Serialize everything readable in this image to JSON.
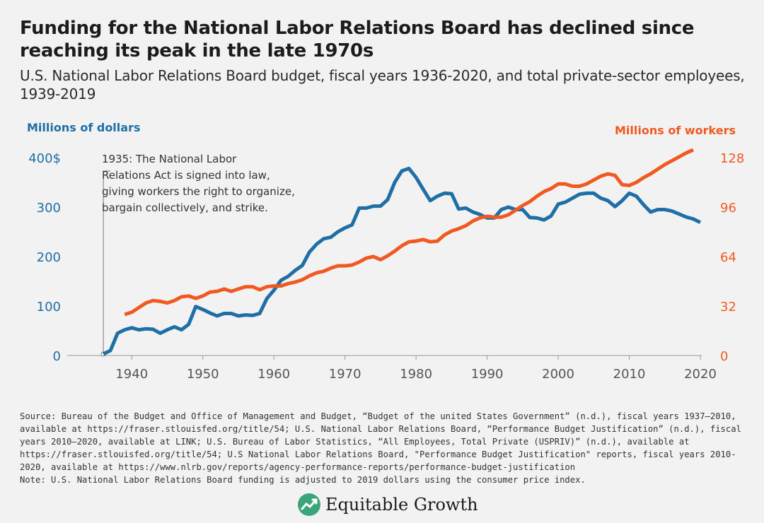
{
  "title": "Funding for the National Labor Relations Board has declined since reaching its peak in the late 1970s",
  "subtitle": "U.S. National Labor Relations Board budget, fiscal years 1936-2020, and total private-sector employees, 1939-2019",
  "colors": {
    "budget": "#1f6fa6",
    "workers": "#f05a22",
    "annotation": "#777777"
  },
  "source": "Source: Bureau of the Budget and Office of Management and Budget, “Budget of the united States Government” (n.d.), fiscal years 1937—2010, available at https://fraser.stlouisfed.org/title/54; U.S. National Labor Relations Board, “Performance Budget Justification” (n.d.), fiscal years 2010—2020, available at LINK; U.S. Bureau of Labor Statistics, “All Employees, Total Private (USPRIV)” (n.d.), available at https://fraser.stlouisfed.org/title/54; U.S National Labor Relations Board, \"Performance Budget Justification\" reports, fiscal years 2010-2020, available at https://www.nlrb.gov/reports/agency-performance-reports/performance-budget-justification",
  "note": "Note: U.S. National Labor Relations Board funding is adjusted to 2019 dollars using the consumer price index.",
  "logo": {
    "text": "Equitable Growth",
    "icon": "growth-chart-leaf-icon"
  },
  "chart_data": {
    "type": "line",
    "x_range": [
      1934,
      2020
    ],
    "x_ticks": [
      "1940",
      "1950",
      "1960",
      "1970",
      "1980",
      "1990",
      "2000",
      "2010",
      "2020"
    ],
    "y_left": {
      "label": "Millions of dollars",
      "range": [
        0,
        400
      ],
      "ticks": [
        "0",
        "100",
        "200",
        "300",
        "400$"
      ]
    },
    "y_right": {
      "label": "Millions of workers",
      "range": [
        0,
        128
      ],
      "ticks": [
        "0",
        "32",
        "64",
        "96",
        "128"
      ]
    },
    "grid": false,
    "annotation": {
      "x": 1936,
      "text": [
        "1935: The National Labor",
        "Relations Act is signed into law,",
        "giving workers the right to organize,",
        "bargain collectively, and strike."
      ]
    },
    "series": [
      {
        "axis": "left",
        "x": [
          1936,
          1937,
          1938,
          1939,
          1940,
          1941,
          1942,
          1943,
          1944,
          1945,
          1946,
          1947,
          1948,
          1949,
          1950,
          1951,
          1952,
          1953,
          1954,
          1955,
          1956,
          1957,
          1958,
          1959,
          1960,
          1961,
          1962,
          1963,
          1964,
          1965,
          1966,
          1967,
          1968,
          1969,
          1970,
          1971,
          1972,
          1973,
          1974,
          1975,
          1976,
          1977,
          1978,
          1979,
          1980,
          1981,
          1982,
          1983,
          1984,
          1985,
          1986,
          1987,
          1988,
          1989,
          1990,
          1991,
          1992,
          1993,
          1994,
          1995,
          1996,
          1997,
          1998,
          1999,
          2000,
          2001,
          2002,
          2003,
          2004,
          2005,
          2006,
          2007,
          2008,
          2009,
          2010,
          2011,
          2012,
          2013,
          2014,
          2015,
          2016,
          2017,
          2018,
          2019,
          2020
        ],
        "values": [
          3,
          10,
          45,
          52,
          56,
          52,
          54,
          53,
          45,
          52,
          58,
          52,
          63,
          99,
          93,
          86,
          80,
          85,
          85,
          80,
          82,
          81,
          85,
          115,
          132,
          152,
          160,
          172,
          182,
          209,
          225,
          236,
          239,
          250,
          258,
          264,
          298,
          298,
          302,
          302,
          315,
          350,
          373,
          378,
          360,
          336,
          313,
          322,
          328,
          327,
          296,
          298,
          290,
          285,
          278,
          278,
          295,
          300,
          295,
          295,
          279,
          278,
          274,
          282,
          306,
          310,
          318,
          326,
          328,
          328,
          318,
          313,
          301,
          313,
          328,
          322,
          305,
          290,
          295,
          295,
          292,
          286,
          280,
          276,
          269
        ]
      },
      {
        "axis": "right",
        "x": [
          1939,
          1940,
          1941,
          1942,
          1943,
          1944,
          1945,
          1946,
          1947,
          1948,
          1949,
          1950,
          1951,
          1952,
          1953,
          1954,
          1955,
          1956,
          1957,
          1958,
          1959,
          1960,
          1961,
          1962,
          1963,
          1964,
          1965,
          1966,
          1967,
          1968,
          1969,
          1970,
          1971,
          1972,
          1973,
          1974,
          1975,
          1976,
          1977,
          1978,
          1979,
          1980,
          1981,
          1982,
          1983,
          1984,
          1985,
          1986,
          1987,
          1988,
          1989,
          1990,
          1991,
          1992,
          1993,
          1994,
          1995,
          1996,
          1997,
          1998,
          1999,
          2000,
          2001,
          2002,
          2003,
          2004,
          2005,
          2006,
          2007,
          2008,
          2009,
          2010,
          2011,
          2012,
          2013,
          2014,
          2015,
          2016,
          2017,
          2018,
          2019
        ],
        "values": [
          26.5,
          28,
          31,
          34,
          35.5,
          35,
          34,
          35.5,
          38,
          38.5,
          37,
          38.5,
          41,
          41.5,
          43,
          41.5,
          43,
          44.5,
          44.5,
          42.5,
          44.5,
          45,
          45,
          46.5,
          47.5,
          49,
          51.5,
          53.5,
          54.5,
          56.5,
          58,
          58,
          58.5,
          60.5,
          63,
          64,
          62,
          64.5,
          67.5,
          71,
          73.5,
          74,
          75,
          73.5,
          74,
          78,
          80.5,
          82,
          84,
          87,
          89,
          90,
          89.5,
          89.5,
          91,
          94,
          97,
          99.5,
          103,
          106,
          108,
          111,
          111,
          109.5,
          109.5,
          111,
          113.5,
          116,
          117.5,
          116.5,
          110.5,
          110,
          112,
          115,
          117.5,
          120.5,
          123.5,
          126,
          128.5,
          131,
          133
        ]
      }
    ]
  }
}
